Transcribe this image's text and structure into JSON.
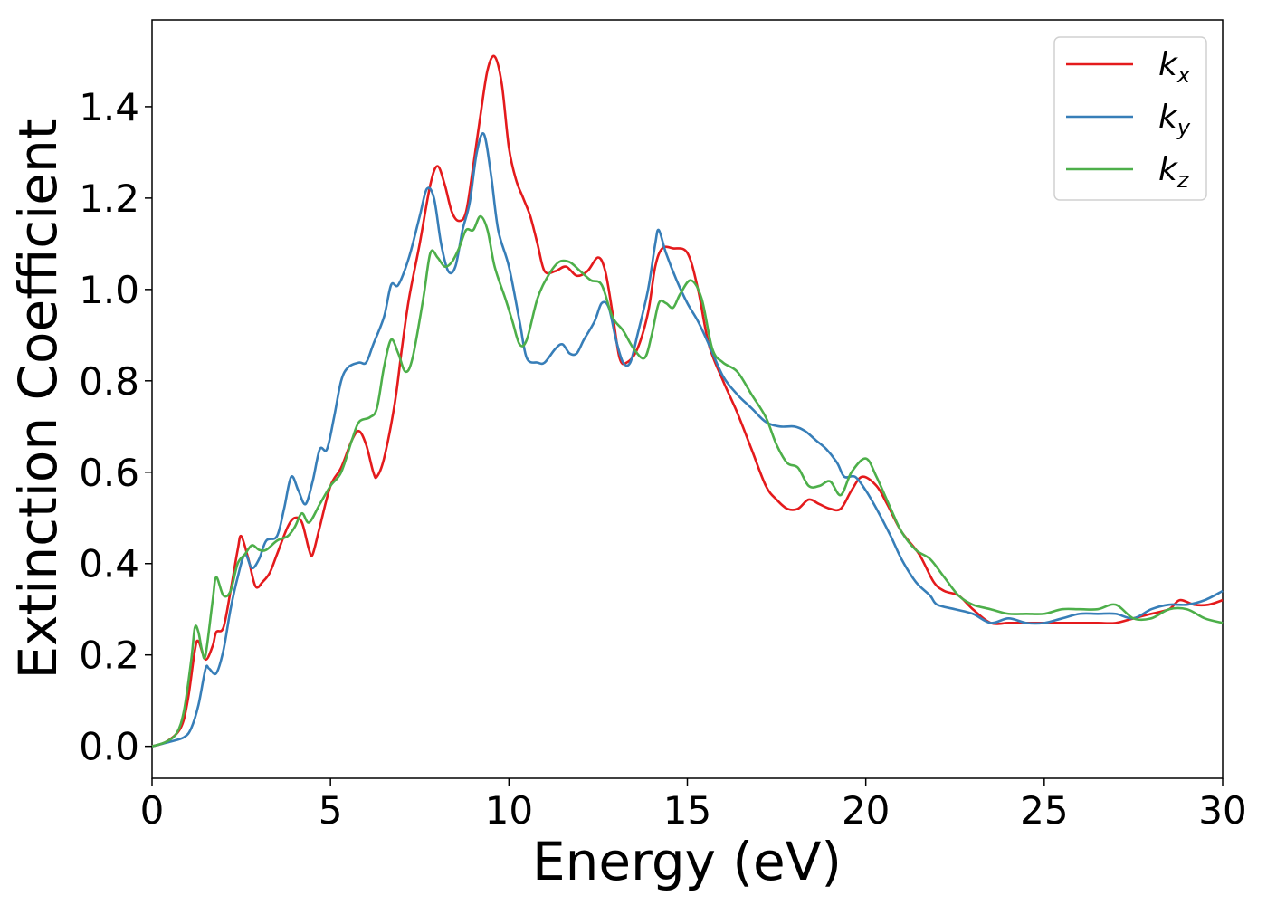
{
  "chart_data": {
    "type": "line",
    "xlabel": "Energy (eV)",
    "ylabel": "Extinction Coefficient",
    "xlim": [
      0,
      30
    ],
    "ylim": [
      -0.07,
      1.59
    ],
    "xticks": [
      "0",
      "5",
      "10",
      "15",
      "20",
      "25",
      "30"
    ],
    "yticks": [
      "0.0",
      "0.2",
      "0.4",
      "0.6",
      "0.8",
      "1.0",
      "1.2",
      "1.4"
    ],
    "grid": false,
    "legend_position": "top-right",
    "series": [
      {
        "name": "k",
        "subscript": "x",
        "color": "#e41a1c",
        "points": [
          [
            0,
            0
          ],
          [
            0.4,
            0.01
          ],
          [
            0.8,
            0.04
          ],
          [
            1.0,
            0.1
          ],
          [
            1.2,
            0.21
          ],
          [
            1.3,
            0.23
          ],
          [
            1.5,
            0.19
          ],
          [
            1.7,
            0.22
          ],
          [
            1.8,
            0.25
          ],
          [
            2.0,
            0.26
          ],
          [
            2.2,
            0.34
          ],
          [
            2.4,
            0.43
          ],
          [
            2.5,
            0.46
          ],
          [
            2.7,
            0.41
          ],
          [
            2.9,
            0.35
          ],
          [
            3.1,
            0.36
          ],
          [
            3.3,
            0.38
          ],
          [
            3.5,
            0.42
          ],
          [
            3.8,
            0.48
          ],
          [
            4.0,
            0.5
          ],
          [
            4.2,
            0.49
          ],
          [
            4.4,
            0.43
          ],
          [
            4.5,
            0.42
          ],
          [
            4.7,
            0.48
          ],
          [
            5.0,
            0.57
          ],
          [
            5.3,
            0.61
          ],
          [
            5.6,
            0.67
          ],
          [
            5.8,
            0.69
          ],
          [
            6.0,
            0.66
          ],
          [
            6.2,
            0.6
          ],
          [
            6.3,
            0.59
          ],
          [
            6.5,
            0.63
          ],
          [
            6.8,
            0.75
          ],
          [
            7.0,
            0.87
          ],
          [
            7.2,
            0.98
          ],
          [
            7.5,
            1.1
          ],
          [
            7.8,
            1.23
          ],
          [
            8.0,
            1.27
          ],
          [
            8.2,
            1.23
          ],
          [
            8.4,
            1.17
          ],
          [
            8.6,
            1.15
          ],
          [
            8.8,
            1.17
          ],
          [
            9.0,
            1.27
          ],
          [
            9.2,
            1.38
          ],
          [
            9.4,
            1.48
          ],
          [
            9.6,
            1.51
          ],
          [
            9.8,
            1.45
          ],
          [
            10.0,
            1.31
          ],
          [
            10.2,
            1.24
          ],
          [
            10.4,
            1.2
          ],
          [
            10.6,
            1.16
          ],
          [
            10.8,
            1.1
          ],
          [
            11.0,
            1.04
          ],
          [
            11.3,
            1.04
          ],
          [
            11.6,
            1.05
          ],
          [
            11.9,
            1.03
          ],
          [
            12.2,
            1.04
          ],
          [
            12.5,
            1.07
          ],
          [
            12.7,
            1.04
          ],
          [
            12.9,
            0.95
          ],
          [
            13.1,
            0.85
          ],
          [
            13.3,
            0.84
          ],
          [
            13.6,
            0.87
          ],
          [
            13.9,
            0.95
          ],
          [
            14.1,
            1.05
          ],
          [
            14.3,
            1.09
          ],
          [
            14.6,
            1.09
          ],
          [
            15.0,
            1.08
          ],
          [
            15.3,
            1.0
          ],
          [
            15.6,
            0.88
          ],
          [
            16.0,
            0.8
          ],
          [
            16.4,
            0.73
          ],
          [
            16.8,
            0.65
          ],
          [
            17.2,
            0.57
          ],
          [
            17.5,
            0.54
          ],
          [
            17.8,
            0.52
          ],
          [
            18.1,
            0.52
          ],
          [
            18.4,
            0.54
          ],
          [
            18.7,
            0.53
          ],
          [
            19.0,
            0.52
          ],
          [
            19.3,
            0.52
          ],
          [
            19.6,
            0.56
          ],
          [
            19.9,
            0.59
          ],
          [
            20.3,
            0.57
          ],
          [
            20.6,
            0.53
          ],
          [
            21.0,
            0.47
          ],
          [
            21.5,
            0.42
          ],
          [
            21.9,
            0.36
          ],
          [
            22.2,
            0.34
          ],
          [
            22.6,
            0.33
          ],
          [
            23.0,
            0.3
          ],
          [
            23.5,
            0.27
          ],
          [
            24.0,
            0.27
          ],
          [
            24.5,
            0.27
          ],
          [
            25.0,
            0.27
          ],
          [
            25.5,
            0.27
          ],
          [
            26.0,
            0.27
          ],
          [
            26.5,
            0.27
          ],
          [
            27.0,
            0.27
          ],
          [
            27.5,
            0.28
          ],
          [
            28.0,
            0.29
          ],
          [
            28.5,
            0.3
          ],
          [
            28.8,
            0.32
          ],
          [
            29.2,
            0.31
          ],
          [
            29.6,
            0.31
          ],
          [
            30.0,
            0.32
          ]
        ]
      },
      {
        "name": "k",
        "subscript": "y",
        "color": "#377eb8",
        "points": [
          [
            0,
            0
          ],
          [
            0.5,
            0.01
          ],
          [
            0.9,
            0.02
          ],
          [
            1.1,
            0.04
          ],
          [
            1.3,
            0.09
          ],
          [
            1.5,
            0.17
          ],
          [
            1.6,
            0.17
          ],
          [
            1.8,
            0.16
          ],
          [
            2.0,
            0.21
          ],
          [
            2.2,
            0.3
          ],
          [
            2.4,
            0.37
          ],
          [
            2.6,
            0.42
          ],
          [
            2.8,
            0.39
          ],
          [
            3.0,
            0.41
          ],
          [
            3.2,
            0.45
          ],
          [
            3.5,
            0.46
          ],
          [
            3.7,
            0.52
          ],
          [
            3.9,
            0.59
          ],
          [
            4.1,
            0.56
          ],
          [
            4.3,
            0.53
          ],
          [
            4.5,
            0.58
          ],
          [
            4.7,
            0.65
          ],
          [
            4.9,
            0.65
          ],
          [
            5.1,
            0.72
          ],
          [
            5.3,
            0.8
          ],
          [
            5.5,
            0.83
          ],
          [
            5.8,
            0.84
          ],
          [
            6.0,
            0.84
          ],
          [
            6.2,
            0.88
          ],
          [
            6.5,
            0.94
          ],
          [
            6.7,
            1.01
          ],
          [
            6.9,
            1.01
          ],
          [
            7.2,
            1.07
          ],
          [
            7.5,
            1.16
          ],
          [
            7.7,
            1.22
          ],
          [
            7.9,
            1.2
          ],
          [
            8.1,
            1.1
          ],
          [
            8.3,
            1.04
          ],
          [
            8.5,
            1.05
          ],
          [
            8.7,
            1.13
          ],
          [
            8.9,
            1.19
          ],
          [
            9.1,
            1.3
          ],
          [
            9.3,
            1.34
          ],
          [
            9.5,
            1.25
          ],
          [
            9.7,
            1.13
          ],
          [
            10.0,
            1.05
          ],
          [
            10.3,
            0.93
          ],
          [
            10.5,
            0.85
          ],
          [
            10.8,
            0.84
          ],
          [
            11.0,
            0.84
          ],
          [
            11.3,
            0.87
          ],
          [
            11.5,
            0.88
          ],
          [
            11.7,
            0.86
          ],
          [
            11.9,
            0.86
          ],
          [
            12.1,
            0.89
          ],
          [
            12.4,
            0.93
          ],
          [
            12.6,
            0.97
          ],
          [
            12.8,
            0.96
          ],
          [
            13.0,
            0.89
          ],
          [
            13.2,
            0.84
          ],
          [
            13.4,
            0.84
          ],
          [
            13.6,
            0.9
          ],
          [
            13.9,
            1.0
          ],
          [
            14.1,
            1.1
          ],
          [
            14.2,
            1.13
          ],
          [
            14.4,
            1.08
          ],
          [
            14.7,
            1.02
          ],
          [
            15.0,
            0.97
          ],
          [
            15.3,
            0.93
          ],
          [
            15.6,
            0.88
          ],
          [
            16.0,
            0.81
          ],
          [
            16.4,
            0.77
          ],
          [
            16.8,
            0.74
          ],
          [
            17.2,
            0.71
          ],
          [
            17.6,
            0.7
          ],
          [
            18.0,
            0.7
          ],
          [
            18.3,
            0.69
          ],
          [
            18.6,
            0.67
          ],
          [
            18.9,
            0.65
          ],
          [
            19.2,
            0.62
          ],
          [
            19.4,
            0.59
          ],
          [
            19.7,
            0.59
          ],
          [
            20.0,
            0.56
          ],
          [
            20.3,
            0.52
          ],
          [
            20.7,
            0.46
          ],
          [
            21.0,
            0.41
          ],
          [
            21.4,
            0.36
          ],
          [
            21.8,
            0.33
          ],
          [
            22.0,
            0.31
          ],
          [
            22.5,
            0.3
          ],
          [
            23.0,
            0.29
          ],
          [
            23.5,
            0.27
          ],
          [
            24.0,
            0.28
          ],
          [
            24.5,
            0.27
          ],
          [
            25.0,
            0.27
          ],
          [
            25.5,
            0.28
          ],
          [
            26.0,
            0.29
          ],
          [
            26.5,
            0.29
          ],
          [
            27.0,
            0.29
          ],
          [
            27.5,
            0.28
          ],
          [
            28.0,
            0.3
          ],
          [
            28.5,
            0.31
          ],
          [
            29.0,
            0.31
          ],
          [
            29.5,
            0.32
          ],
          [
            30.0,
            0.34
          ]
        ]
      },
      {
        "name": "k",
        "subscript": "z",
        "color": "#4daf4a",
        "points": [
          [
            0,
            0
          ],
          [
            0.4,
            0.01
          ],
          [
            0.7,
            0.03
          ],
          [
            0.9,
            0.08
          ],
          [
            1.1,
            0.19
          ],
          [
            1.2,
            0.26
          ],
          [
            1.3,
            0.25
          ],
          [
            1.4,
            0.21
          ],
          [
            1.5,
            0.2
          ],
          [
            1.7,
            0.32
          ],
          [
            1.8,
            0.37
          ],
          [
            2.0,
            0.33
          ],
          [
            2.2,
            0.34
          ],
          [
            2.4,
            0.4
          ],
          [
            2.6,
            0.42
          ],
          [
            2.8,
            0.44
          ],
          [
            3.0,
            0.43
          ],
          [
            3.2,
            0.43
          ],
          [
            3.5,
            0.45
          ],
          [
            3.8,
            0.46
          ],
          [
            4.0,
            0.48
          ],
          [
            4.2,
            0.51
          ],
          [
            4.4,
            0.49
          ],
          [
            4.7,
            0.53
          ],
          [
            5.0,
            0.57
          ],
          [
            5.3,
            0.6
          ],
          [
            5.6,
            0.67
          ],
          [
            5.8,
            0.71
          ],
          [
            6.1,
            0.72
          ],
          [
            6.3,
            0.74
          ],
          [
            6.5,
            0.83
          ],
          [
            6.7,
            0.89
          ],
          [
            6.9,
            0.86
          ],
          [
            7.1,
            0.82
          ],
          [
            7.3,
            0.85
          ],
          [
            7.6,
            0.98
          ],
          [
            7.8,
            1.08
          ],
          [
            8.0,
            1.07
          ],
          [
            8.2,
            1.05
          ],
          [
            8.4,
            1.06
          ],
          [
            8.6,
            1.09
          ],
          [
            8.8,
            1.13
          ],
          [
            9.0,
            1.13
          ],
          [
            9.2,
            1.16
          ],
          [
            9.4,
            1.13
          ],
          [
            9.6,
            1.05
          ],
          [
            9.9,
            0.98
          ],
          [
            10.1,
            0.93
          ],
          [
            10.3,
            0.88
          ],
          [
            10.5,
            0.89
          ],
          [
            10.8,
            0.98
          ],
          [
            11.1,
            1.03
          ],
          [
            11.4,
            1.06
          ],
          [
            11.7,
            1.06
          ],
          [
            12.0,
            1.04
          ],
          [
            12.3,
            1.02
          ],
          [
            12.6,
            1.01
          ],
          [
            12.9,
            0.94
          ],
          [
            13.2,
            0.91
          ],
          [
            13.5,
            0.87
          ],
          [
            13.8,
            0.85
          ],
          [
            14.0,
            0.9
          ],
          [
            14.2,
            0.97
          ],
          [
            14.4,
            0.97
          ],
          [
            14.6,
            0.96
          ],
          [
            14.8,
            0.99
          ],
          [
            15.1,
            1.02
          ],
          [
            15.4,
            0.98
          ],
          [
            15.7,
            0.87
          ],
          [
            16.0,
            0.84
          ],
          [
            16.4,
            0.82
          ],
          [
            16.8,
            0.77
          ],
          [
            17.2,
            0.72
          ],
          [
            17.5,
            0.66
          ],
          [
            17.8,
            0.62
          ],
          [
            18.1,
            0.61
          ],
          [
            18.4,
            0.57
          ],
          [
            18.7,
            0.57
          ],
          [
            19.0,
            0.58
          ],
          [
            19.3,
            0.55
          ],
          [
            19.6,
            0.6
          ],
          [
            20.0,
            0.63
          ],
          [
            20.3,
            0.59
          ],
          [
            20.7,
            0.52
          ],
          [
            21.0,
            0.47
          ],
          [
            21.4,
            0.43
          ],
          [
            21.8,
            0.41
          ],
          [
            22.2,
            0.37
          ],
          [
            22.6,
            0.33
          ],
          [
            23.0,
            0.31
          ],
          [
            23.5,
            0.3
          ],
          [
            24.0,
            0.29
          ],
          [
            24.5,
            0.29
          ],
          [
            25.0,
            0.29
          ],
          [
            25.5,
            0.3
          ],
          [
            26.0,
            0.3
          ],
          [
            26.5,
            0.3
          ],
          [
            27.0,
            0.31
          ],
          [
            27.5,
            0.28
          ],
          [
            28.0,
            0.28
          ],
          [
            28.5,
            0.3
          ],
          [
            29.0,
            0.3
          ],
          [
            29.5,
            0.28
          ],
          [
            30.0,
            0.27
          ]
        ]
      }
    ]
  }
}
